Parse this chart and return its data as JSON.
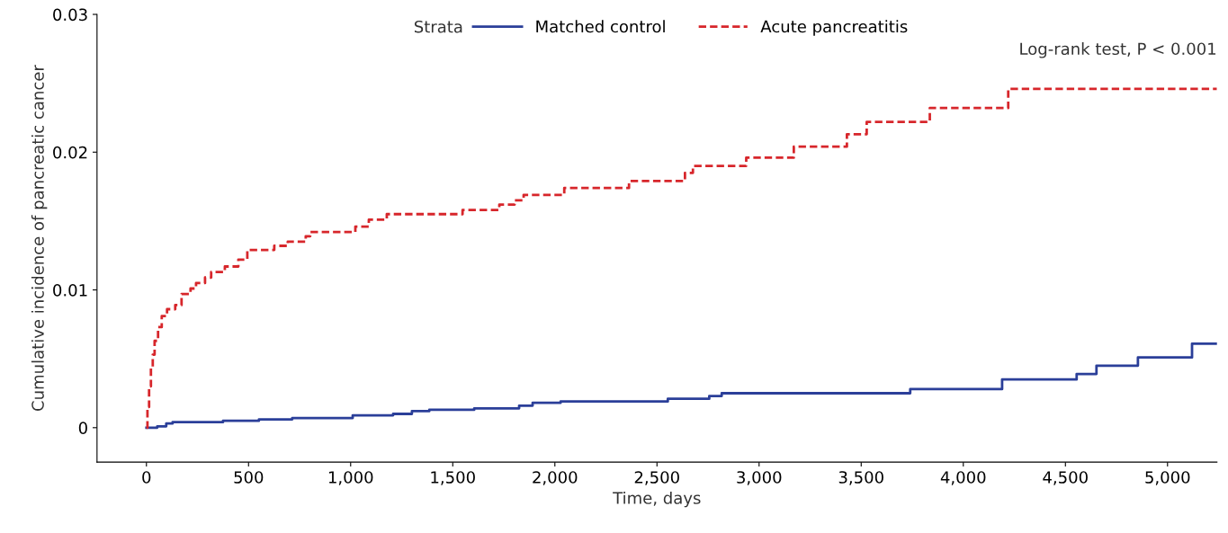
{
  "chart_data": {
    "type": "step",
    "xlabel": "Time, days",
    "ylabel": "Cumulative incidence of pancreatic cancer",
    "legend_title": "Strata",
    "legend": "top",
    "grid": false,
    "xlim": [
      -242,
      5242
    ],
    "ylim": [
      -0.0025,
      0.03
    ],
    "xticks": [
      {
        "value": 0,
        "label": "0"
      },
      {
        "value": 500,
        "label": "500"
      },
      {
        "value": 1000,
        "label": "1,000"
      },
      {
        "value": 1500,
        "label": "1,500"
      },
      {
        "value": 2000,
        "label": "2,000"
      },
      {
        "value": 2500,
        "label": "2,500"
      },
      {
        "value": 3000,
        "label": "3,000"
      },
      {
        "value": 3500,
        "label": "3,500"
      },
      {
        "value": 4000,
        "label": "4,000"
      },
      {
        "value": 4500,
        "label": "4,500"
      },
      {
        "value": 5000,
        "label": "5,000"
      }
    ],
    "yticks": [
      0,
      0.01,
      0.02,
      0.03
    ],
    "annotations": [
      "Log-rank test, P < 0.001"
    ],
    "series": [
      {
        "name": "Matched control",
        "color": "#2b3f99",
        "line_style": "solid",
        "x": [
          0,
          53,
          97,
          128,
          375,
          551,
          714,
          1010,
          1208,
          1300,
          1385,
          1605,
          1825,
          1891,
          2028,
          2553,
          2756,
          2817,
          3740,
          4190,
          4555,
          4652,
          4855,
          5120,
          5242
        ],
        "values": [
          0,
          0.0001,
          0.0003,
          0.0004,
          0.0005,
          0.0006,
          0.0007,
          0.0009,
          0.001,
          0.0012,
          0.0013,
          0.0014,
          0.0016,
          0.0018,
          0.0019,
          0.0021,
          0.0023,
          0.0025,
          0.0028,
          0.0035,
          0.0039,
          0.0045,
          0.0051,
          0.0061,
          0.0061
        ]
      },
      {
        "name": "Acute pancreatitis",
        "color": "#d7262b",
        "line_style": "dashed",
        "x": [
          0,
          5,
          13,
          22,
          31,
          40,
          57,
          75,
          101,
          141,
          172,
          216,
          243,
          287,
          317,
          384,
          450,
          494,
          626,
          692,
          780,
          802,
          1023,
          1089,
          1177,
          1548,
          1728,
          1803,
          1847,
          2046,
          2363,
          2637,
          2676,
          2937,
          3170,
          3430,
          3527,
          3836,
          4220,
          5242
        ],
        "values": [
          0,
          0.0015,
          0.003,
          0.0043,
          0.0053,
          0.0063,
          0.0073,
          0.0081,
          0.0086,
          0.0089,
          0.0097,
          0.0101,
          0.0105,
          0.0109,
          0.0113,
          0.0117,
          0.0122,
          0.0129,
          0.0132,
          0.0135,
          0.0139,
          0.0142,
          0.0146,
          0.0151,
          0.0155,
          0.0158,
          0.0162,
          0.0165,
          0.0169,
          0.0174,
          0.0179,
          0.0185,
          0.019,
          0.0196,
          0.0204,
          0.0213,
          0.0222,
          0.0232,
          0.0246,
          0.0246
        ]
      }
    ]
  }
}
